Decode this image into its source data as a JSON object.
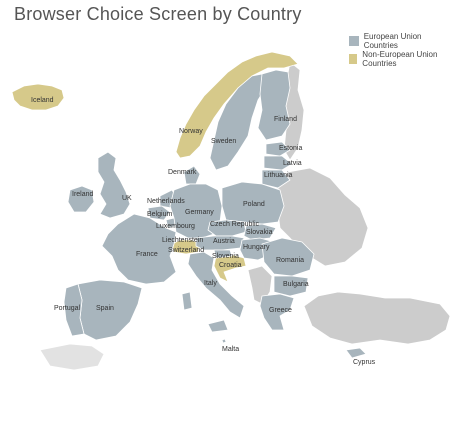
{
  "title": "Browser Choice Screen by Country",
  "legend": {
    "eu_label": "European Union Countries",
    "non_eu_label": "Non-European Union Countries"
  },
  "colors": {
    "eu": "#a8b5bd",
    "non_eu": "#d6c98a",
    "other": "#cccccc",
    "border": "#ffffff"
  },
  "countries": {
    "iceland": "Iceland",
    "norway": "Norway",
    "sweden": "Sweden",
    "finland": "Finland",
    "estonia": "Estonia",
    "latvia": "Latvia",
    "lithuania": "Lithuania",
    "denmark": "Denmark",
    "ireland": "Ireland",
    "uk": "UK",
    "netherlands": "Netherlands",
    "belgium": "Belgium",
    "luxembourg": "Luxembourg",
    "germany": "Germany",
    "poland": "Poland",
    "czech": "Czech Republic",
    "slovakia": "Slovakia",
    "austria": "Austria",
    "hungary": "Hungary",
    "liechtenstein": "Liechtenstein",
    "switzerland": "Switzerland",
    "slovenia": "Slovenia",
    "croatia": "Croatia",
    "france": "France",
    "romania": "Romania",
    "bulgaria": "Bulgaria",
    "italy": "Italy",
    "portugal": "Portugal",
    "spain": "Spain",
    "greece": "Greece",
    "malta": "Malta",
    "cyprus": "Cyprus"
  }
}
